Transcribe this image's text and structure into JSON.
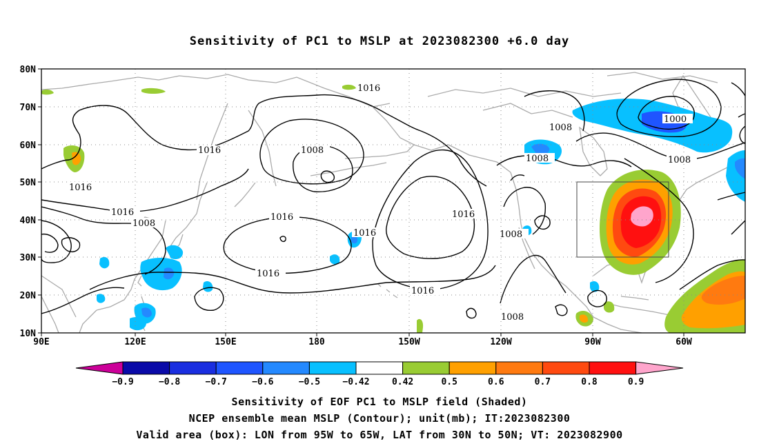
{
  "title": "Sensitivity of PC1 to MSLP at 2023082300 +6.0 day",
  "lat_labels": [
    "80N",
    "70N",
    "60N",
    "50N",
    "40N",
    "30N",
    "20N",
    "10N"
  ],
  "lon_labels": [
    "90E",
    "120E",
    "150E",
    "180",
    "150W",
    "120W",
    "90W",
    "60W"
  ],
  "contour_labels": {
    "c1016_arctic": "1016",
    "c1016_asia": "1016",
    "c1016_west": "1016",
    "c1016_w2": "1016",
    "c1008_asia": "1008",
    "c1008_bering": "1008",
    "c1016_mid": "1016",
    "c1016_hawaii": "1016",
    "c1016_mid2": "1016",
    "c1016_east": "1016",
    "c1016_sub": "1016",
    "c1008_can": "1008",
    "c1008_ak": "1008",
    "c1008_ne": "1008",
    "c1000": "1000",
    "c1008_us": "1008",
    "c1008_trop": "1008"
  },
  "colorbar": {
    "labels": [
      "−0.9",
      "−0.8",
      "−0.7",
      "−0.6",
      "−0.5",
      "−0.42",
      "0.42",
      "0.5",
      "0.6",
      "0.7",
      "0.8",
      "0.9"
    ],
    "colors": {
      "m9": "#cc0099",
      "m8": "#0a0aa8",
      "m7": "#1a2ee0",
      "m6": "#1f55ff",
      "m5": "#2489ff",
      "m42": "#08c0ff",
      "zero": "#ffffff",
      "p42": "#99cc33",
      "p5": "#ffa000",
      "p6": "#ff7a10",
      "p7": "#ff4a10",
      "p8": "#ff1010",
      "p9": "#ffa5cc"
    }
  },
  "valid_box": {
    "lon_from": "95W",
    "lon_to": "65W",
    "lat_from": "30N",
    "lat_to": "50N"
  },
  "caption": {
    "line1": "Sensitivity of EOF PC1 to MSLP field (Shaded)",
    "line2": "NCEP ensemble mean MSLP (Contour); unit(mb); IT:2023082300",
    "line3": "Valid area (box): LON from 95W to 65W, LAT from 30N to 50N; VT: 2023082900"
  }
}
